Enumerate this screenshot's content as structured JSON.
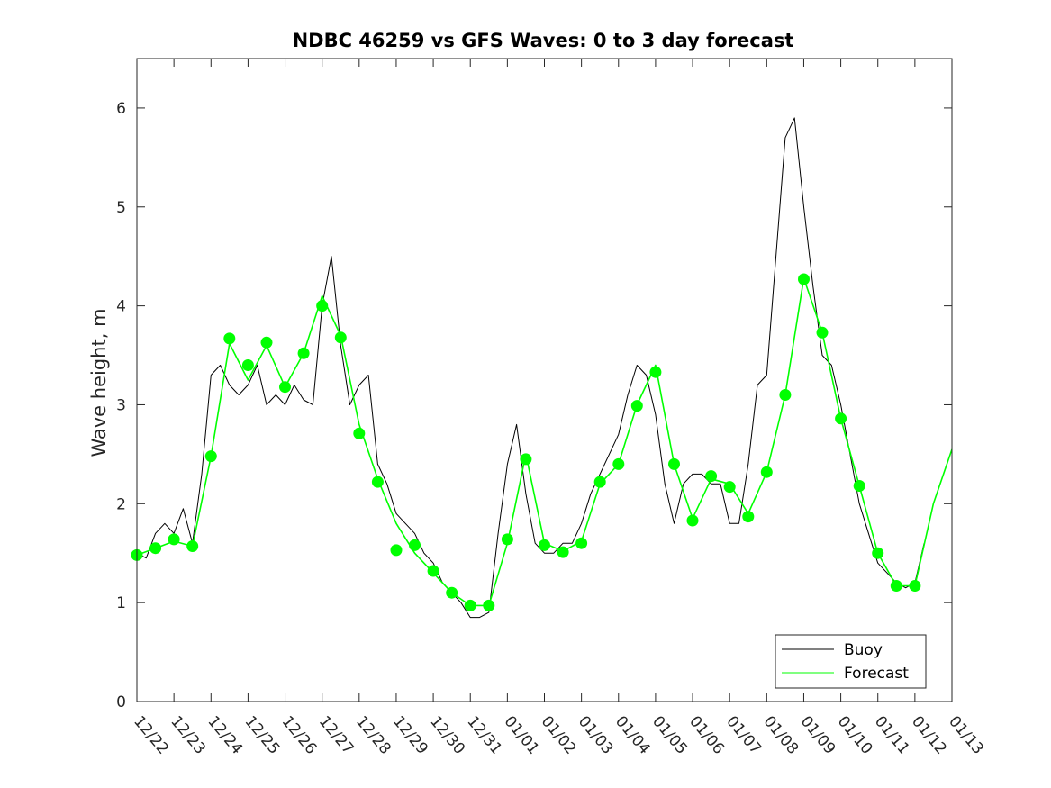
{
  "chart_data": {
    "type": "line",
    "title": "NDBC 46259 vs GFS Waves: 0 to 3 day forecast",
    "xlabel": "",
    "ylabel": "Wave height, m",
    "xlim": [
      0,
      22
    ],
    "ylim": [
      0,
      6.5
    ],
    "yticks": [
      0,
      1,
      2,
      3,
      4,
      5,
      6
    ],
    "xtick_labels": [
      "12/22",
      "12/23",
      "12/24",
      "12/25",
      "12/26",
      "12/27",
      "12/28",
      "12/29",
      "12/30",
      "12/31",
      "01/01",
      "01/02",
      "01/03",
      "01/04",
      "01/05",
      "01/06",
      "01/07",
      "01/08",
      "01/09",
      "01/10",
      "01/11",
      "01/12",
      "01/13"
    ],
    "x_units": "days since 12/22",
    "legend": {
      "position": "bottom-right",
      "entries": [
        "Buoy",
        "Forecast"
      ]
    },
    "colors": {
      "buoy": "#000000",
      "forecast": "#00ff00",
      "axis": "#262626"
    },
    "series": [
      {
        "name": "Buoy",
        "x": [
          0,
          0.25,
          0.5,
          0.75,
          1,
          1.25,
          1.5,
          1.75,
          2,
          2.25,
          2.5,
          2.75,
          3,
          3.25,
          3.5,
          3.75,
          4,
          4.25,
          4.5,
          4.75,
          5,
          5.25,
          5.5,
          5.75,
          6,
          6.25,
          6.5,
          6.75,
          7,
          7.25,
          7.5,
          7.75,
          8,
          8.25,
          8.5,
          8.75,
          9,
          9.25,
          9.5,
          9.75,
          10,
          10.25,
          10.5,
          10.75,
          11,
          11.25,
          11.5,
          11.75,
          12,
          12.25,
          12.5,
          12.75,
          13,
          13.25,
          13.5,
          13.75,
          14,
          14.25,
          14.5,
          14.75,
          15,
          15.25,
          15.5,
          15.75,
          16,
          16.25,
          16.5,
          16.75,
          17,
          17.25,
          17.5,
          17.75,
          18,
          18.25,
          18.5,
          18.75,
          19,
          19.25,
          19.5,
          19.75,
          20,
          20.25,
          20.5,
          20.75,
          21,
          21.25
        ],
        "y": [
          1.5,
          1.45,
          1.7,
          1.8,
          1.7,
          1.95,
          1.6,
          2.3,
          3.3,
          3.4,
          3.2,
          3.1,
          3.2,
          3.4,
          3.0,
          3.1,
          3.0,
          3.2,
          3.05,
          3.0,
          4.0,
          4.5,
          3.6,
          3.0,
          3.2,
          3.3,
          2.4,
          2.2,
          1.9,
          1.8,
          1.7,
          1.5,
          1.4,
          1.2,
          1.1,
          1.0,
          0.85,
          0.85,
          0.9,
          1.7,
          2.4,
          2.8,
          2.1,
          1.6,
          1.5,
          1.5,
          1.6,
          1.6,
          1.8,
          2.1,
          2.3,
          2.5,
          2.7,
          3.1,
          3.4,
          3.3,
          2.9,
          2.2,
          1.8,
          2.2,
          2.3,
          2.3,
          2.2,
          2.2,
          1.8,
          1.8,
          2.4,
          3.2,
          3.3,
          4.5,
          5.7,
          5.9,
          5.0,
          4.2,
          3.5,
          3.4,
          3.0,
          2.5,
          2.0,
          1.7,
          1.4,
          1.3,
          1.2,
          1.15,
          1.2,
          1.6
        ]
      },
      {
        "name": "Forecast",
        "x": [
          0,
          0.5,
          1,
          1.5,
          2,
          2.5,
          3,
          3.5,
          4,
          4.5,
          5,
          5.5,
          6,
          6.5,
          7,
          7.5,
          8,
          8.5,
          9,
          9.5,
          10,
          10.5,
          11,
          11.5,
          12,
          12.5,
          13,
          13.5,
          14,
          14.5,
          15,
          15.5,
          16,
          16.5,
          17,
          17.5,
          18,
          18.5,
          19,
          19.5,
          20,
          20.5,
          21,
          21.5,
          22
        ],
        "y": [
          1.48,
          1.55,
          1.62,
          1.57,
          2.48,
          3.62,
          3.25,
          3.6,
          3.18,
          3.52,
          4.1,
          3.7,
          2.8,
          2.25,
          1.8,
          1.5,
          1.3,
          1.1,
          0.97,
          0.97,
          1.6,
          2.5,
          1.6,
          1.52,
          1.62,
          2.2,
          2.4,
          3.0,
          3.4,
          2.4,
          1.85,
          2.25,
          2.2,
          1.9,
          2.32,
          3.1,
          4.28,
          3.73,
          2.86,
          2.18,
          1.5,
          1.17,
          1.17,
          2.0,
          2.55
        ]
      }
    ],
    "forecast_markers": {
      "x": [
        0,
        0.5,
        1,
        1.5,
        2,
        2.5,
        3,
        3.5,
        4,
        4.5,
        5,
        5.5,
        6,
        6.5,
        7,
        7.5,
        8,
        8.5,
        9,
        9.5,
        10,
        10.5,
        11,
        11.5,
        12,
        12.5,
        13,
        13.5,
        14,
        14.5,
        15,
        15.5,
        16,
        16.5,
        17,
        17.5,
        18,
        18.5,
        19,
        19.5,
        20,
        20.5,
        21
      ],
      "y": [
        1.48,
        1.55,
        1.64,
        1.57,
        2.48,
        3.67,
        3.4,
        3.63,
        3.18,
        3.52,
        4.0,
        3.68,
        2.71,
        2.22,
        1.53,
        1.58,
        1.32,
        1.1,
        0.97,
        0.97,
        1.64,
        2.45,
        1.58,
        1.51,
        1.6,
        2.22,
        2.4,
        2.99,
        3.33,
        2.4,
        1.83,
        2.28,
        2.17,
        1.87,
        2.32,
        3.1,
        4.27,
        3.73,
        2.86,
        2.18,
        1.5,
        1.17,
        1.17
      ]
    }
  }
}
